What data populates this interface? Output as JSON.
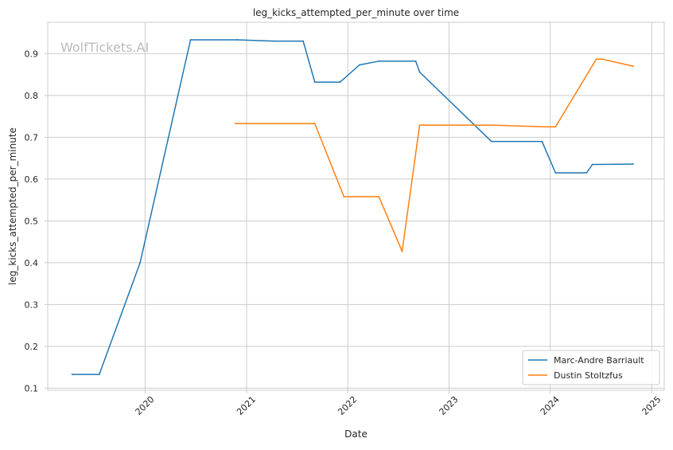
{
  "chart_data": {
    "type": "line",
    "title": "leg_kicks_attempted_per_minute over time",
    "xlabel": "Date",
    "ylabel": "leg_kicks_attempted_per_minute",
    "watermark": "WolfTickets.AI",
    "x_ticks": [
      "2020",
      "2021",
      "2022",
      "2023",
      "2024",
      "2025"
    ],
    "y_ticks": [
      "0.1",
      "0.2",
      "0.3",
      "0.4",
      "0.5",
      "0.6",
      "0.7",
      "0.8",
      "0.9"
    ],
    "xlim": [
      "2019-01-15",
      "2025-02-15"
    ],
    "ylim": [
      0.095,
      0.975
    ],
    "grid": true,
    "legend_position": "bottom-right",
    "series": [
      {
        "name": "Marc-Andre Barriault",
        "color": "#1f77b4",
        "points": [
          [
            "2019-04-13",
            0.133
          ],
          [
            "2019-07-20",
            0.133
          ],
          [
            "2019-12-14",
            0.4
          ],
          [
            "2020-06-13",
            0.933
          ],
          [
            "2020-11-28",
            0.933
          ],
          [
            "2021-04-10",
            0.93
          ],
          [
            "2021-07-24",
            0.93
          ],
          [
            "2021-09-04",
            0.832
          ],
          [
            "2021-12-04",
            0.832
          ],
          [
            "2022-02-12",
            0.873
          ],
          [
            "2022-04-23",
            0.882
          ],
          [
            "2022-09-03",
            0.882
          ],
          [
            "2022-09-17",
            0.856
          ],
          [
            "2023-06-03",
            0.69
          ],
          [
            "2023-12-02",
            0.69
          ],
          [
            "2024-01-20",
            0.615
          ],
          [
            "2024-05-11",
            0.615
          ],
          [
            "2024-06-01",
            0.635
          ],
          [
            "2024-10-26",
            0.636
          ]
        ]
      },
      {
        "name": "Dustin Stoltzfus",
        "color": "#ff7f0e",
        "points": [
          [
            "2020-11-21",
            0.733
          ],
          [
            "2021-09-04",
            0.733
          ],
          [
            "2021-12-18",
            0.558
          ],
          [
            "2022-04-23",
            0.558
          ],
          [
            "2022-07-16",
            0.427
          ],
          [
            "2022-09-17",
            0.729
          ],
          [
            "2023-06-03",
            0.729
          ],
          [
            "2023-12-16",
            0.725
          ],
          [
            "2024-01-20",
            0.725
          ],
          [
            "2024-06-15",
            0.887
          ],
          [
            "2024-07-06",
            0.887
          ],
          [
            "2024-10-26",
            0.87
          ]
        ]
      }
    ]
  }
}
